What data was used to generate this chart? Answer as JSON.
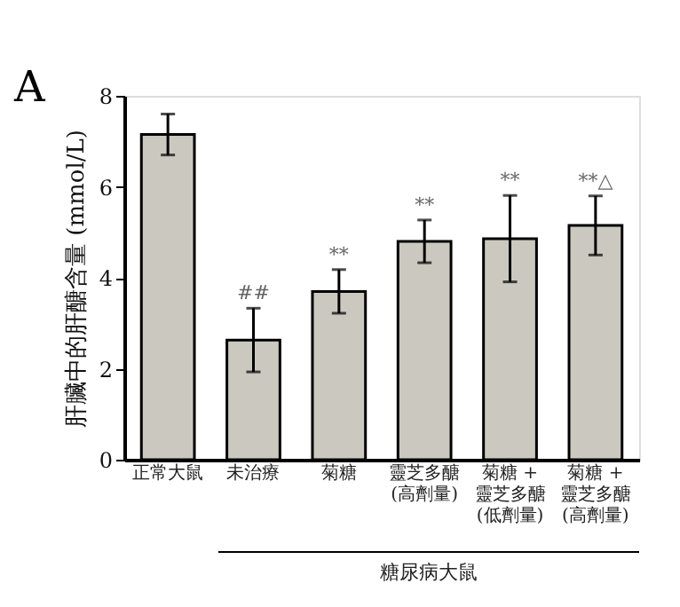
{
  "chart_data": {
    "type": "bar",
    "ylabel": "肝臟中的肝醣含量 (mmol/L)",
    "categories": [
      "正常大鼠",
      "未治療",
      "菊糖",
      "靈芝多醣\n(高劑量)",
      "菊糖 +\n靈芝多醣\n(低劑量)",
      "菊糖 +\n靈芝多醣\n(高劑量)"
    ],
    "values": [
      7.15,
      2.63,
      3.7,
      4.8,
      4.86,
      5.15
    ],
    "errors": [
      0.45,
      0.7,
      0.48,
      0.47,
      0.95,
      0.65
    ],
    "color": "#cbc8c0",
    "ylim": [
      0,
      8
    ],
    "yticks": [
      0,
      2,
      4,
      6,
      8
    ],
    "grid": false,
    "annotations": [
      "A",
      "糖尿病大鼠",
      {
        "text": "##",
        "x": "未治療",
        "y": 3.33
      },
      {
        "text": "**",
        "x": "菊糖",
        "y": 4.18
      },
      {
        "text": "**",
        "x": "靈芝多醣\n(高劑量)",
        "y": 5.27
      },
      {
        "text": "**",
        "x": "菊糖 +\n靈芝多醣\n(低劑量)",
        "y": 5.81
      },
      {
        "text": "**△",
        "x": "菊糖 +\n靈芝多醣\n(高劑量)",
        "y": 5.8
      }
    ]
  }
}
